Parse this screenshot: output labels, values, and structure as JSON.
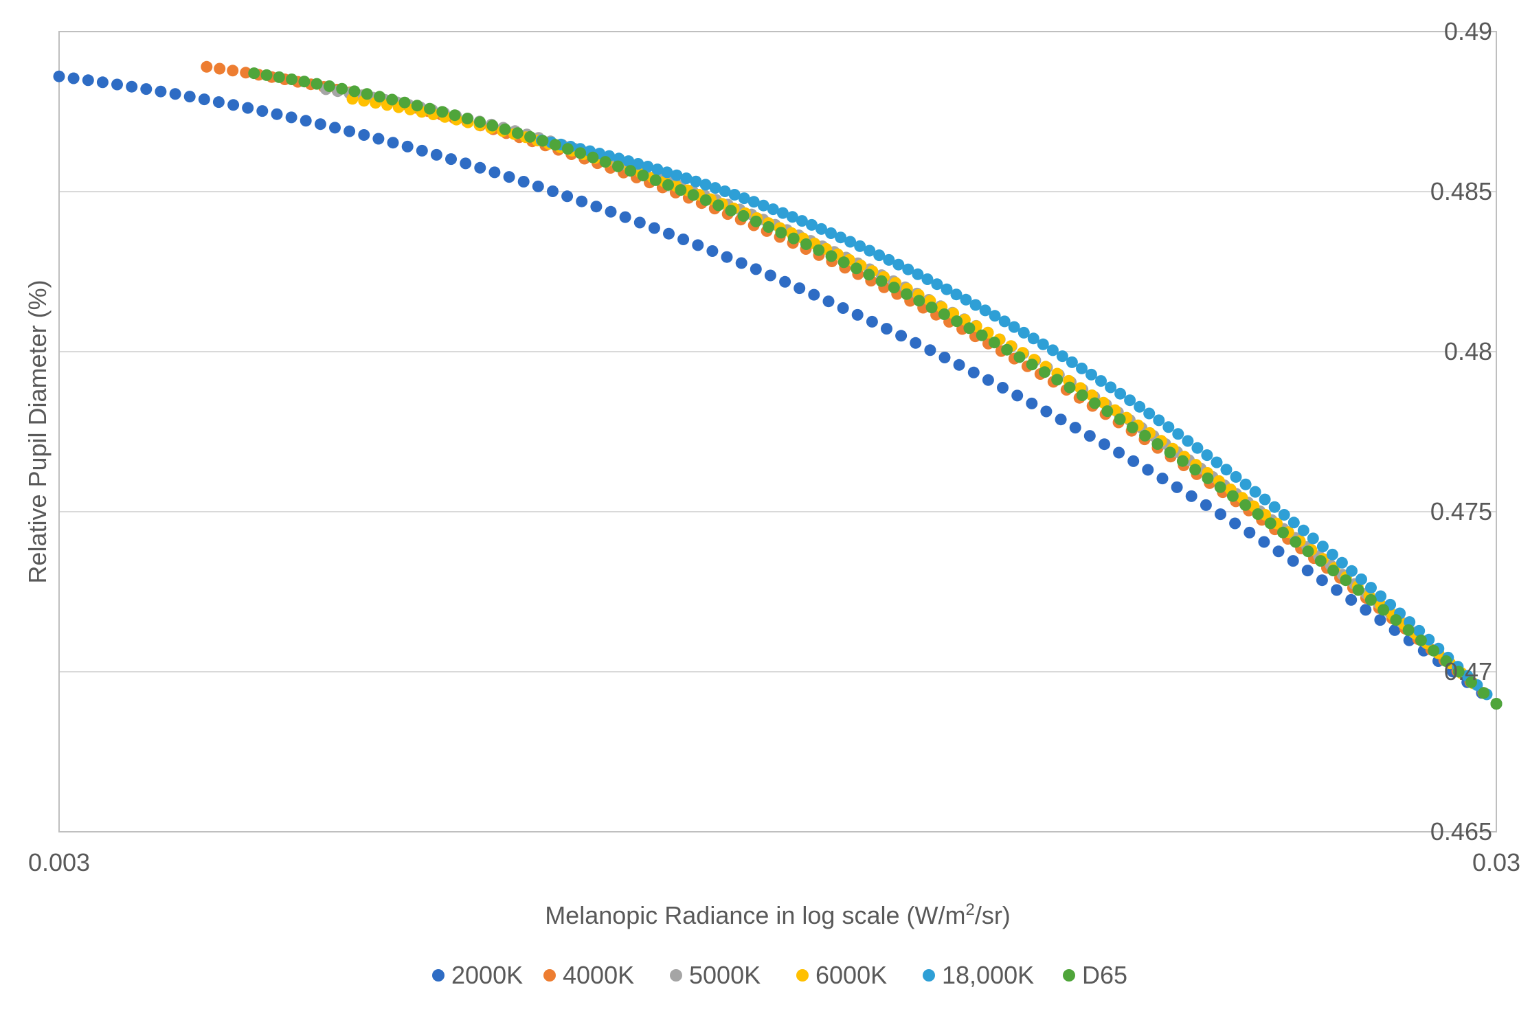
{
  "chart_data": {
    "type": "scatter",
    "title": "",
    "xlabel": "Melanopic Radiance in log scale (W/m",
    "xlabel_superscript": "2",
    "xlabel_suffix": "/sr)",
    "ylabel": "Relative Pupil Diameter (%)",
    "x_scale": "log",
    "xlim": [
      0.003,
      0.03
    ],
    "ylim": [
      0.465,
      0.49
    ],
    "x_ticks": [
      0.003,
      0.03
    ],
    "x_tick_labels": [
      "0.003",
      "0.03"
    ],
    "y_ticks": [
      0.465,
      0.47,
      0.475,
      0.48,
      0.485,
      0.49
    ],
    "y_tick_labels": [
      "0.465",
      "0.47",
      "0.475",
      "0.48",
      "0.485",
      "0.49"
    ],
    "y_axis_side": "right",
    "grid": true,
    "legend_position": "bottom",
    "points_per_series": 100,
    "shared_end": {
      "x": 0.03,
      "y": 0.469
    },
    "series": [
      {
        "name": "2000K",
        "color": "#2E6CC4",
        "x_start": 0.003,
        "y_start": 0.4886,
        "y_slope_log": -0.00567
      },
      {
        "name": "4000K",
        "color": "#ED7D31",
        "x_start": 0.0038,
        "y_start": 0.4889,
        "y_slope_log": -0.00625
      },
      {
        "name": "5000K",
        "color": "#A5A5A5",
        "x_start": 0.0046,
        "y_start": 0.4882,
        "y_slope_log": -0.0073
      },
      {
        "name": "6000K",
        "color": "#FFC000",
        "x_start": 0.0048,
        "y_start": 0.4879,
        "y_slope_log": -0.0075
      },
      {
        "name": "18,000K",
        "color": "#2E9FD6",
        "x_start": 0.0065,
        "y_start": 0.4866,
        "y_slope_log": -0.00914
      },
      {
        "name": "D65",
        "color": "#4FA53A",
        "x_start": 0.0041,
        "y_start": 0.4887,
        "y_slope_log": -0.0068
      }
    ]
  }
}
